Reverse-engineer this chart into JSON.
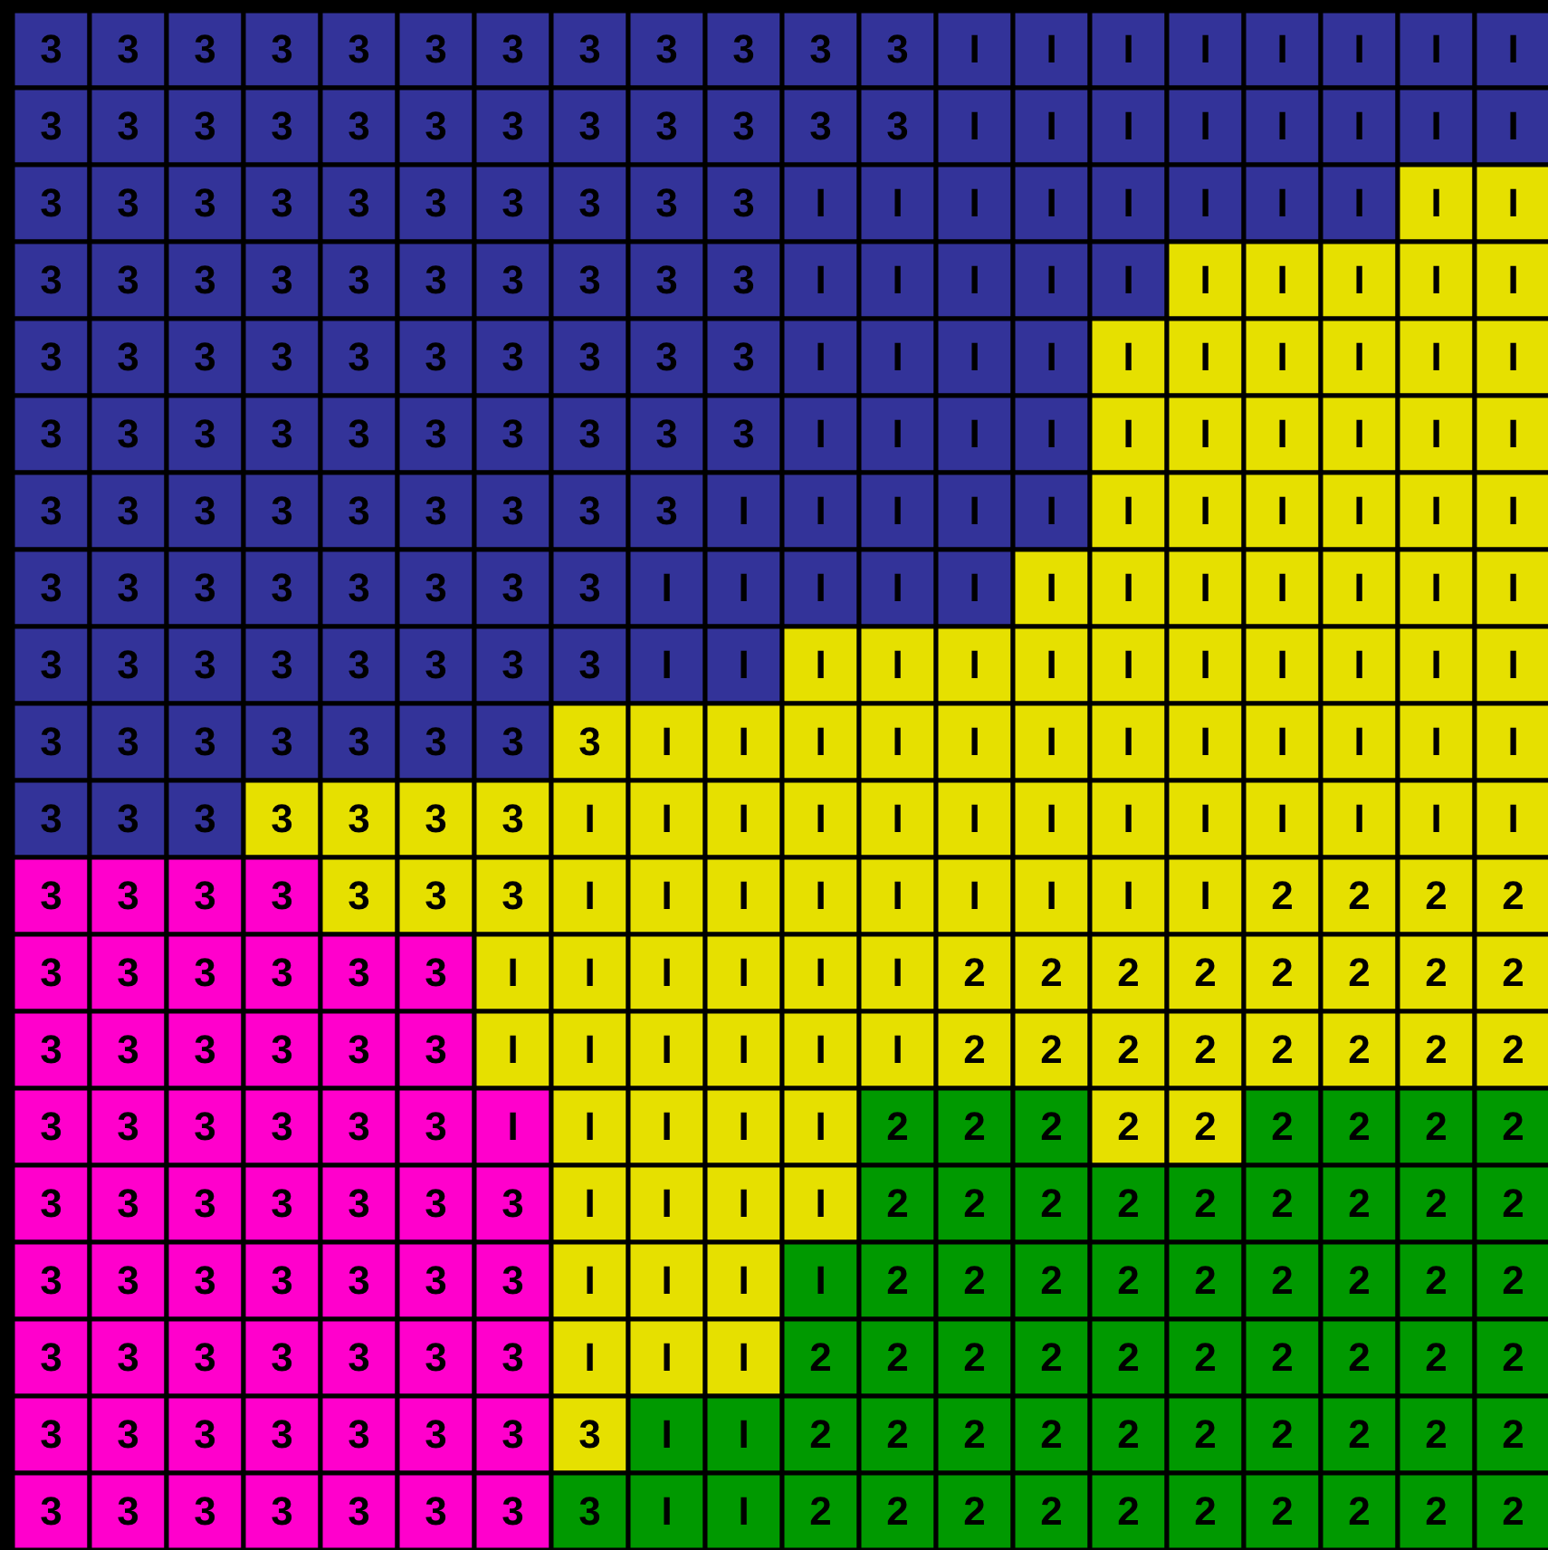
{
  "chart_data": {
    "type": "heatmap",
    "tick_labels": false,
    "categories": [
      null,
      null,
      null,
      null,
      null,
      null,
      null,
      null,
      null,
      null,
      null,
      null,
      null,
      null,
      null,
      null,
      null,
      null,
      null,
      null
    ],
    "y_categories": [
      null,
      null,
      null,
      null,
      null,
      null,
      null,
      null,
      null,
      null,
      null,
      null,
      null,
      null,
      null,
      null,
      null,
      null,
      null,
      null
    ],
    "cells": [
      [
        3,
        3,
        3,
        3,
        3,
        3,
        3,
        3,
        3,
        3,
        3,
        3,
        null,
        null,
        null,
        null,
        null,
        null,
        null,
        null
      ],
      [
        3,
        3,
        3,
        3,
        3,
        3,
        3,
        3,
        3,
        3,
        3,
        3,
        null,
        null,
        null,
        null,
        null,
        null,
        null,
        null
      ],
      [
        3,
        3,
        3,
        3,
        3,
        3,
        3,
        3,
        3,
        3,
        null,
        null,
        null,
        null,
        null,
        null,
        null,
        null,
        null,
        null
      ],
      [
        3,
        3,
        3,
        3,
        3,
        3,
        3,
        3,
        3,
        3,
        null,
        null,
        null,
        null,
        null,
        null,
        null,
        null,
        null,
        null
      ],
      [
        3,
        3,
        3,
        3,
        3,
        3,
        3,
        3,
        3,
        3,
        null,
        null,
        null,
        null,
        null,
        null,
        null,
        null,
        null,
        null
      ],
      [
        3,
        3,
        3,
        3,
        3,
        3,
        3,
        3,
        3,
        3,
        null,
        null,
        null,
        null,
        null,
        null,
        null,
        null,
        null,
        null
      ],
      [
        3,
        3,
        3,
        3,
        3,
        3,
        3,
        3,
        3,
        null,
        null,
        null,
        null,
        null,
        null,
        null,
        null,
        null,
        null,
        null
      ],
      [
        3,
        3,
        3,
        3,
        3,
        3,
        3,
        3,
        null,
        null,
        null,
        null,
        null,
        null,
        null,
        null,
        null,
        null,
        null,
        null
      ],
      [
        3,
        3,
        3,
        3,
        3,
        3,
        3,
        3,
        null,
        null,
        null,
        null,
        null,
        null,
        null,
        null,
        null,
        null,
        null,
        null
      ],
      [
        3,
        3,
        3,
        3,
        3,
        3,
        3,
        3,
        null,
        null,
        null,
        null,
        null,
        null,
        null,
        null,
        null,
        null,
        null,
        null
      ],
      [
        3,
        3,
        3,
        3,
        3,
        3,
        3,
        null,
        null,
        null,
        null,
        null,
        null,
        null,
        null,
        null,
        null,
        null,
        null,
        null
      ],
      [
        3,
        3,
        3,
        3,
        3,
        3,
        3,
        null,
        null,
        null,
        null,
        null,
        null,
        null,
        null,
        null,
        2,
        2,
        2,
        2
      ],
      [
        3,
        3,
        3,
        3,
        3,
        3,
        null,
        null,
        null,
        null,
        null,
        null,
        2,
        2,
        2,
        2,
        2,
        2,
        2,
        2
      ],
      [
        3,
        3,
        3,
        3,
        3,
        3,
        null,
        null,
        null,
        null,
        null,
        null,
        2,
        2,
        2,
        2,
        2,
        2,
        2,
        2
      ],
      [
        3,
        3,
        3,
        3,
        3,
        3,
        null,
        null,
        null,
        null,
        null,
        2,
        2,
        2,
        2,
        2,
        2,
        2,
        2,
        2
      ],
      [
        3,
        3,
        3,
        3,
        3,
        3,
        3,
        null,
        null,
        null,
        null,
        2,
        2,
        2,
        2,
        2,
        2,
        2,
        2,
        2
      ],
      [
        3,
        3,
        3,
        3,
        3,
        3,
        3,
        null,
        null,
        null,
        null,
        2,
        2,
        2,
        2,
        2,
        2,
        2,
        2,
        2
      ],
      [
        3,
        3,
        3,
        3,
        3,
        3,
        3,
        null,
        null,
        null,
        2,
        2,
        2,
        2,
        2,
        2,
        2,
        2,
        2,
        2
      ],
      [
        3,
        3,
        3,
        3,
        3,
        3,
        3,
        3,
        null,
        null,
        2,
        2,
        2,
        2,
        2,
        2,
        2,
        2,
        2,
        2
      ],
      [
        3,
        3,
        3,
        3,
        3,
        3,
        3,
        3,
        null,
        null,
        2,
        2,
        2,
        2,
        2,
        2,
        2,
        2,
        2,
        2
      ]
    ],
    "cell_labels": [
      [
        "3",
        "3",
        "3",
        "3",
        "3",
        "3",
        "3",
        "3",
        "3",
        "3",
        "3",
        "3",
        "I",
        "I",
        "I",
        "I",
        "I",
        "I",
        "I",
        "I"
      ],
      [
        "3",
        "3",
        "3",
        "3",
        "3",
        "3",
        "3",
        "3",
        "3",
        "3",
        "3",
        "3",
        "I",
        "I",
        "I",
        "I",
        "I",
        "I",
        "I",
        "I"
      ],
      [
        "3",
        "3",
        "3",
        "3",
        "3",
        "3",
        "3",
        "3",
        "3",
        "3",
        "I",
        "I",
        "I",
        "I",
        "I",
        "I",
        "I",
        "I",
        "I",
        "I"
      ],
      [
        "3",
        "3",
        "3",
        "3",
        "3",
        "3",
        "3",
        "3",
        "3",
        "3",
        "I",
        "I",
        "I",
        "I",
        "I",
        "I",
        "I",
        "I",
        "I",
        "I"
      ],
      [
        "3",
        "3",
        "3",
        "3",
        "3",
        "3",
        "3",
        "3",
        "3",
        "3",
        "I",
        "I",
        "I",
        "I",
        "I",
        "I",
        "I",
        "I",
        "I",
        "I"
      ],
      [
        "3",
        "3",
        "3",
        "3",
        "3",
        "3",
        "3",
        "3",
        "3",
        "3",
        "I",
        "I",
        "I",
        "I",
        "I",
        "I",
        "I",
        "I",
        "I",
        "I"
      ],
      [
        "3",
        "3",
        "3",
        "3",
        "3",
        "3",
        "3",
        "3",
        "3",
        "I",
        "I",
        "I",
        "I",
        "I",
        "I",
        "I",
        "I",
        "I",
        "I",
        "I"
      ],
      [
        "3",
        "3",
        "3",
        "3",
        "3",
        "3",
        "3",
        "3",
        "I",
        "I",
        "I",
        "I",
        "I",
        "I",
        "I",
        "I",
        "I",
        "I",
        "I",
        "I"
      ],
      [
        "3",
        "3",
        "3",
        "3",
        "3",
        "3",
        "3",
        "3",
        "I",
        "I",
        "I",
        "I",
        "I",
        "I",
        "I",
        "I",
        "I",
        "I",
        "I",
        "I"
      ],
      [
        "3",
        "3",
        "3",
        "3",
        "3",
        "3",
        "3",
        "3",
        "I",
        "I",
        "I",
        "I",
        "I",
        "I",
        "I",
        "I",
        "I",
        "I",
        "I",
        "I"
      ],
      [
        "3",
        "3",
        "3",
        "3",
        "3",
        "3",
        "3",
        "I",
        "I",
        "I",
        "I",
        "I",
        "I",
        "I",
        "I",
        "I",
        "I",
        "I",
        "I",
        "I"
      ],
      [
        "3",
        "3",
        "3",
        "3",
        "3",
        "3",
        "3",
        "I",
        "I",
        "I",
        "I",
        "I",
        "I",
        "I",
        "I",
        "I",
        "2",
        "2",
        "2",
        "2"
      ],
      [
        "3",
        "3",
        "3",
        "3",
        "3",
        "3",
        "I",
        "I",
        "I",
        "I",
        "I",
        "I",
        "2",
        "2",
        "2",
        "2",
        "2",
        "2",
        "2",
        "2"
      ],
      [
        "3",
        "3",
        "3",
        "3",
        "3",
        "3",
        "I",
        "I",
        "I",
        "I",
        "I",
        "I",
        "2",
        "2",
        "2",
        "2",
        "2",
        "2",
        "2",
        "2"
      ],
      [
        "3",
        "3",
        "3",
        "3",
        "3",
        "3",
        "I",
        "I",
        "I",
        "I",
        "I",
        "2",
        "2",
        "2",
        "2",
        "2",
        "2",
        "2",
        "2",
        "2"
      ],
      [
        "3",
        "3",
        "3",
        "3",
        "3",
        "3",
        "3",
        "I",
        "I",
        "I",
        "I",
        "2",
        "2",
        "2",
        "2",
        "2",
        "2",
        "2",
        "2",
        "2"
      ],
      [
        "3",
        "3",
        "3",
        "3",
        "3",
        "3",
        "3",
        "I",
        "I",
        "I",
        "I",
        "2",
        "2",
        "2",
        "2",
        "2",
        "2",
        "2",
        "2",
        "2"
      ],
      [
        "3",
        "3",
        "3",
        "3",
        "3",
        "3",
        "3",
        "I",
        "I",
        "I",
        "2",
        "2",
        "2",
        "2",
        "2",
        "2",
        "2",
        "2",
        "2",
        "2"
      ],
      [
        "3",
        "3",
        "3",
        "3",
        "3",
        "3",
        "3",
        "3",
        "I",
        "I",
        "2",
        "2",
        "2",
        "2",
        "2",
        "2",
        "2",
        "2",
        "2",
        "2"
      ],
      [
        "3",
        "3",
        "3",
        "3",
        "3",
        "3",
        "3",
        "3",
        "I",
        "I",
        "2",
        "2",
        "2",
        "2",
        "2",
        "2",
        "2",
        "2",
        "2",
        "2"
      ]
    ],
    "colors": [
      [
        "#333399",
        "#333399",
        "#333399",
        "#333399",
        "#333399",
        "#333399",
        "#333399",
        "#333399",
        "#333399",
        "#333399",
        "#333399",
        "#333399",
        "#333399",
        "#333399",
        "#333399",
        "#333399",
        "#333399",
        "#333399",
        "#333399",
        "#333399"
      ],
      [
        "#333399",
        "#333399",
        "#333399",
        "#333399",
        "#333399",
        "#333399",
        "#333399",
        "#333399",
        "#333399",
        "#333399",
        "#333399",
        "#333399",
        "#333399",
        "#333399",
        "#333399",
        "#333399",
        "#333399",
        "#333399",
        "#333399",
        "#333399"
      ],
      [
        "#333399",
        "#333399",
        "#333399",
        "#333399",
        "#333399",
        "#333399",
        "#333399",
        "#333399",
        "#333399",
        "#333399",
        "#333399",
        "#333399",
        "#333399",
        "#333399",
        "#333399",
        "#333399",
        "#333399",
        "#333399",
        "#e6e000",
        "#e6e000"
      ],
      [
        "#333399",
        "#333399",
        "#333399",
        "#333399",
        "#333399",
        "#333399",
        "#333399",
        "#333399",
        "#333399",
        "#333399",
        "#333399",
        "#333399",
        "#333399",
        "#333399",
        "#333399",
        "#e6e000",
        "#e6e000",
        "#e6e000",
        "#e6e000",
        "#e6e000"
      ],
      [
        "#333399",
        "#333399",
        "#333399",
        "#333399",
        "#333399",
        "#333399",
        "#333399",
        "#333399",
        "#333399",
        "#333399",
        "#333399",
        "#333399",
        "#333399",
        "#333399",
        "#e6e000",
        "#e6e000",
        "#e6e000",
        "#e6e000",
        "#e6e000",
        "#e6e000"
      ],
      [
        "#333399",
        "#333399",
        "#333399",
        "#333399",
        "#333399",
        "#333399",
        "#333399",
        "#333399",
        "#333399",
        "#333399",
        "#333399",
        "#333399",
        "#333399",
        "#333399",
        "#e6e000",
        "#e6e000",
        "#e6e000",
        "#e6e000",
        "#e6e000",
        "#e6e000"
      ],
      [
        "#333399",
        "#333399",
        "#333399",
        "#333399",
        "#333399",
        "#333399",
        "#333399",
        "#333399",
        "#333399",
        "#333399",
        "#333399",
        "#333399",
        "#333399",
        "#333399",
        "#e6e000",
        "#e6e000",
        "#e6e000",
        "#e6e000",
        "#e6e000",
        "#e6e000"
      ],
      [
        "#333399",
        "#333399",
        "#333399",
        "#333399",
        "#333399",
        "#333399",
        "#333399",
        "#333399",
        "#333399",
        "#333399",
        "#333399",
        "#333399",
        "#333399",
        "#e6e000",
        "#e6e000",
        "#e6e000",
        "#e6e000",
        "#e6e000",
        "#e6e000",
        "#e6e000"
      ],
      [
        "#333399",
        "#333399",
        "#333399",
        "#333399",
        "#333399",
        "#333399",
        "#333399",
        "#333399",
        "#333399",
        "#333399",
        "#e6e000",
        "#e6e000",
        "#e6e000",
        "#e6e000",
        "#e6e000",
        "#e6e000",
        "#e6e000",
        "#e6e000",
        "#e6e000",
        "#e6e000"
      ],
      [
        "#333399",
        "#333399",
        "#333399",
        "#333399",
        "#333399",
        "#333399",
        "#333399",
        "#e6e000",
        "#e6e000",
        "#e6e000",
        "#e6e000",
        "#e6e000",
        "#e6e000",
        "#e6e000",
        "#e6e000",
        "#e6e000",
        "#e6e000",
        "#e6e000",
        "#e6e000",
        "#e6e000"
      ],
      [
        "#333399",
        "#333399",
        "#333399",
        "#e6e000",
        "#e6e000",
        "#e6e000",
        "#e6e000",
        "#e6e000",
        "#e6e000",
        "#e6e000",
        "#e6e000",
        "#e6e000",
        "#e6e000",
        "#e6e000",
        "#e6e000",
        "#e6e000",
        "#e6e000",
        "#e6e000",
        "#e6e000",
        "#e6e000"
      ],
      [
        "#ff00cc",
        "#ff00cc",
        "#ff00cc",
        "#ff00cc",
        "#e6e000",
        "#e6e000",
        "#e6e000",
        "#e6e000",
        "#e6e000",
        "#e6e000",
        "#e6e000",
        "#e6e000",
        "#e6e000",
        "#e6e000",
        "#e6e000",
        "#e6e000",
        "#e6e000",
        "#e6e000",
        "#e6e000",
        "#e6e000"
      ],
      [
        "#ff00cc",
        "#ff00cc",
        "#ff00cc",
        "#ff00cc",
        "#ff00cc",
        "#ff00cc",
        "#e6e000",
        "#e6e000",
        "#e6e000",
        "#e6e000",
        "#e6e000",
        "#e6e000",
        "#e6e000",
        "#e6e000",
        "#e6e000",
        "#e6e000",
        "#e6e000",
        "#e6e000",
        "#e6e000",
        "#e6e000"
      ],
      [
        "#ff00cc",
        "#ff00cc",
        "#ff00cc",
        "#ff00cc",
        "#ff00cc",
        "#ff00cc",
        "#e6e000",
        "#e6e000",
        "#e6e000",
        "#e6e000",
        "#e6e000",
        "#e6e000",
        "#e6e000",
        "#e6e000",
        "#e6e000",
        "#e6e000",
        "#e6e000",
        "#e6e000",
        "#e6e000",
        "#e6e000"
      ],
      [
        "#ff00cc",
        "#ff00cc",
        "#ff00cc",
        "#ff00cc",
        "#ff00cc",
        "#ff00cc",
        "#ff00cc",
        "#e6e000",
        "#e6e000",
        "#e6e000",
        "#e6e000",
        "#009900",
        "#009900",
        "#009900",
        "#e6e000",
        "#e6e000",
        "#009900",
        "#009900",
        "#009900",
        "#009900"
      ],
      [
        "#ff00cc",
        "#ff00cc",
        "#ff00cc",
        "#ff00cc",
        "#ff00cc",
        "#ff00cc",
        "#ff00cc",
        "#e6e000",
        "#e6e000",
        "#e6e000",
        "#e6e000",
        "#009900",
        "#009900",
        "#009900",
        "#009900",
        "#009900",
        "#009900",
        "#009900",
        "#009900",
        "#009900"
      ],
      [
        "#ff00cc",
        "#ff00cc",
        "#ff00cc",
        "#ff00cc",
        "#ff00cc",
        "#ff00cc",
        "#ff00cc",
        "#e6e000",
        "#e6e000",
        "#e6e000",
        "#009900",
        "#009900",
        "#009900",
        "#009900",
        "#009900",
        "#009900",
        "#009900",
        "#009900",
        "#009900",
        "#009900"
      ],
      [
        "#ff00cc",
        "#ff00cc",
        "#ff00cc",
        "#ff00cc",
        "#ff00cc",
        "#ff00cc",
        "#ff00cc",
        "#e6e000",
        "#e6e000",
        "#e6e000",
        "#009900",
        "#009900",
        "#009900",
        "#009900",
        "#009900",
        "#009900",
        "#009900",
        "#009900",
        "#009900",
        "#009900"
      ],
      [
        "#ff00cc",
        "#ff00cc",
        "#ff00cc",
        "#ff00cc",
        "#ff00cc",
        "#ff00cc",
        "#ff00cc",
        "#e6e000",
        "#009900",
        "#009900",
        "#009900",
        "#009900",
        "#009900",
        "#009900",
        "#009900",
        "#009900",
        "#009900",
        "#009900",
        "#009900",
        "#009900"
      ],
      [
        "#ff00cc",
        "#ff00cc",
        "#ff00cc",
        "#ff00cc",
        "#ff00cc",
        "#ff00cc",
        "#ff00cc",
        "#009900",
        "#009900",
        "#009900",
        "#009900",
        "#009900",
        "#009900",
        "#009900",
        "#009900",
        "#009900",
        "#009900",
        "#009900",
        "#009900",
        "#009900"
      ]
    ]
  }
}
